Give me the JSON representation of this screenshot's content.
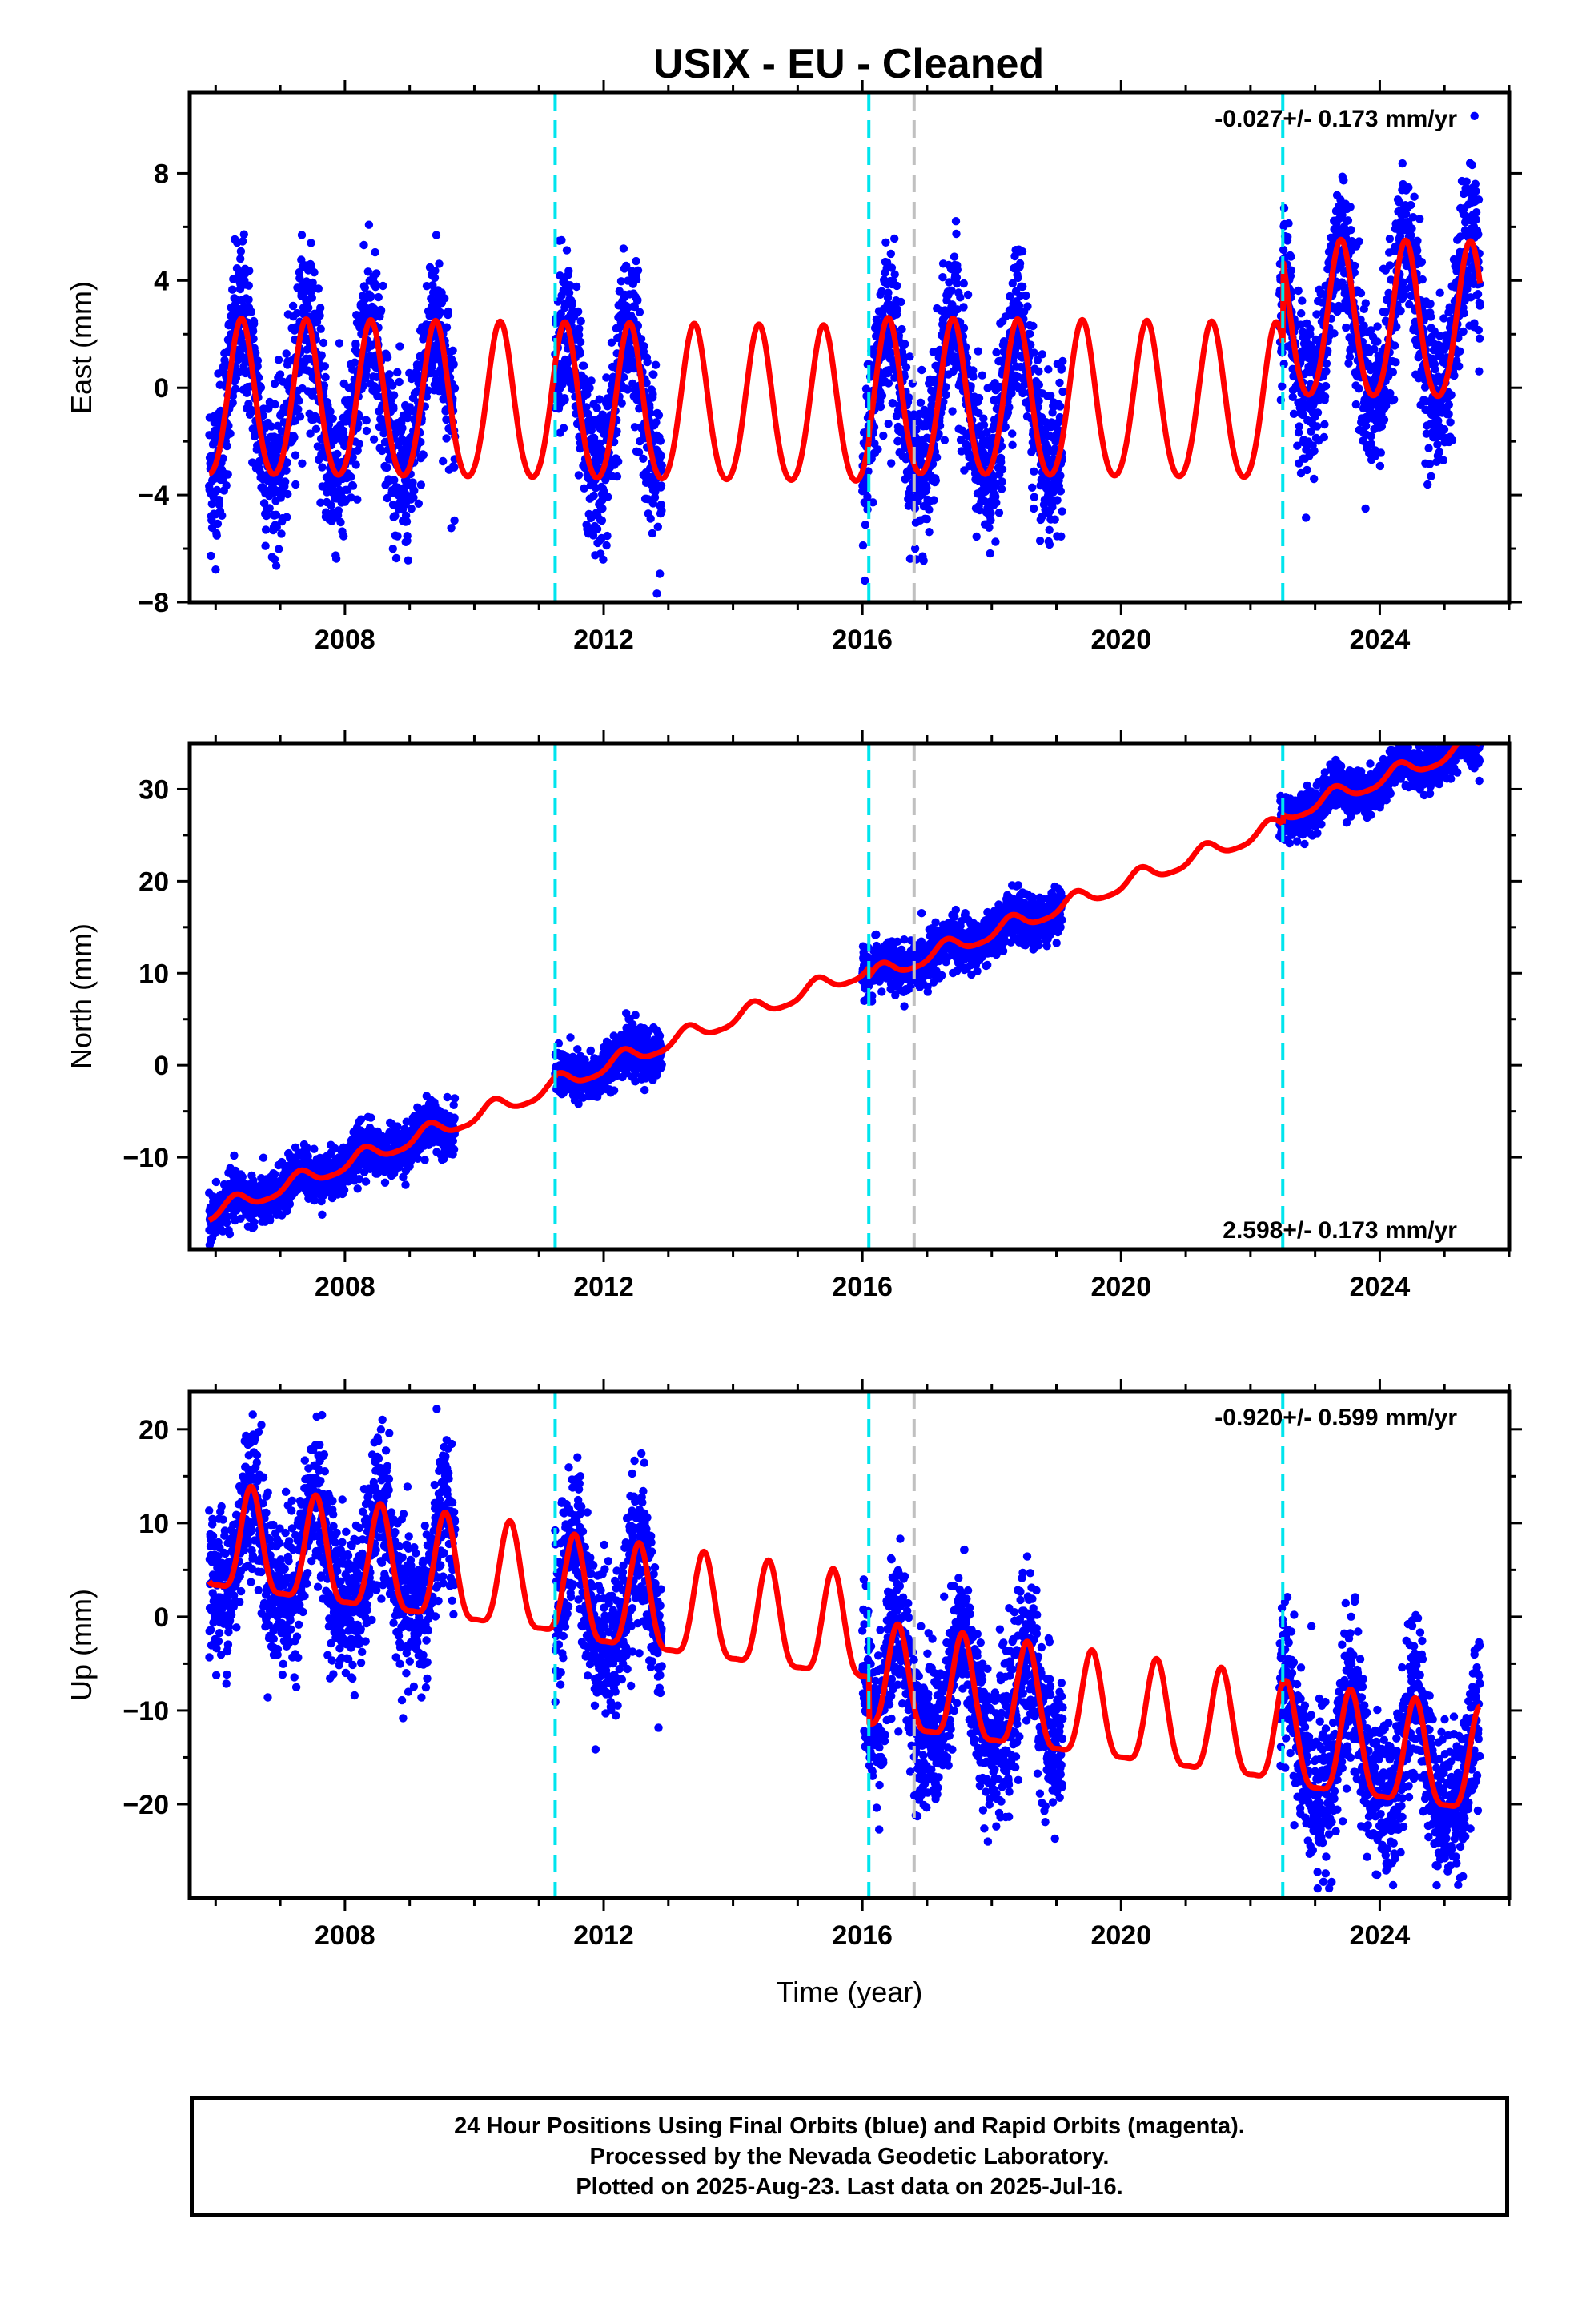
{
  "title": "USIX  - EU - Cleaned",
  "colors": {
    "data_points": "#0000ff",
    "model_curve": "#ff0000",
    "equipment_change": "#00e5ee",
    "other_event": "#c0c0c0",
    "frame": "#000000"
  },
  "footer": {
    "line1": "24 Hour Positions Using Final Orbits (blue) and Rapid Orbits (magenta).",
    "line2": "Processed by the Nevada Geodetic Laboratory.",
    "line3": "Plotted on 2025-Aug-23. Last data on 2025-Jul-16."
  },
  "chart_data": [
    {
      "type": "scatter",
      "panel": "east",
      "ylabel": "East (mm)",
      "xlabel": "",
      "xlim": [
        2005.6,
        2026.0
      ],
      "ylim": [
        -8,
        11
      ],
      "xticks": [
        2008,
        2012,
        2016,
        2020,
        2024
      ],
      "yticks": [
        -8,
        -4,
        0,
        4,
        8
      ],
      "rate_text": "-0.027+/- 0.173 mm/yr",
      "rate_position": "top-right",
      "vertical_lines": [
        {
          "x": 2011.25,
          "kind": "equipment_change"
        },
        {
          "x": 2016.1,
          "kind": "equipment_change"
        },
        {
          "x": 2016.8,
          "kind": "other_event"
        },
        {
          "x": 2022.5,
          "kind": "equipment_change"
        }
      ],
      "model": {
        "rate": -0.027,
        "annual_amplitude": 2.9,
        "semiannual_amplitude": 0.3,
        "phase_year": 2006.4,
        "segment_offsets": [
          {
            "from": 2005.9,
            "to": 2011.25,
            "offset": -0.6
          },
          {
            "from": 2011.25,
            "to": 2016.1,
            "offset": -0.6
          },
          {
            "from": 2016.1,
            "to": 2022.5,
            "offset": -0.3
          },
          {
            "from": 2022.5,
            "to": 2025.55,
            "offset": 2.8
          }
        ]
      },
      "data_spans": [
        {
          "from": 2005.9,
          "to": 2009.7,
          "scatter": 1.5
        },
        {
          "from": 2011.25,
          "to": 2012.9,
          "scatter": 1.5
        },
        {
          "from": 2016.0,
          "to": 2019.1,
          "scatter": 1.4
        },
        {
          "from": 2022.45,
          "to": 2025.55,
          "scatter": 1.4
        }
      ]
    },
    {
      "type": "scatter",
      "panel": "north",
      "ylabel": "North (mm)",
      "xlabel": "",
      "xlim": [
        2005.6,
        2026.0
      ],
      "ylim": [
        -20,
        35
      ],
      "xticks": [
        2008,
        2012,
        2016,
        2020,
        2024
      ],
      "yticks": [
        -10,
        0,
        10,
        20,
        30
      ],
      "rate_text": "2.598+/- 0.173 mm/yr",
      "rate_position": "bottom-right",
      "vertical_lines": [
        {
          "x": 2011.25,
          "kind": "equipment_change"
        },
        {
          "x": 2016.1,
          "kind": "equipment_change"
        },
        {
          "x": 2016.8,
          "kind": "other_event"
        },
        {
          "x": 2022.5,
          "kind": "equipment_change"
        }
      ],
      "model": {
        "rate": 2.598,
        "annual_amplitude": 0.9,
        "semiannual_amplitude": 0.2,
        "phase_year": 2006.3,
        "segment_offsets": [
          {
            "from": 2005.9,
            "to": 2011.25,
            "offset": -16.2
          },
          {
            "from": 2011.25,
            "to": 2016.1,
            "offset": -16.0
          },
          {
            "from": 2016.1,
            "to": 2022.5,
            "offset": -17.0
          },
          {
            "from": 2022.5,
            "to": 2025.55,
            "offset": -16.0
          }
        ]
      },
      "data_spans": [
        {
          "from": 2005.9,
          "to": 2009.7,
          "scatter": 1.3
        },
        {
          "from": 2011.25,
          "to": 2012.9,
          "scatter": 1.3
        },
        {
          "from": 2016.0,
          "to": 2019.1,
          "scatter": 1.3
        },
        {
          "from": 2022.45,
          "to": 2025.55,
          "scatter": 1.2
        }
      ]
    },
    {
      "type": "scatter",
      "panel": "up",
      "ylabel": "Up (mm)",
      "xlabel": "Time (year)",
      "xlim": [
        2005.6,
        2026.0
      ],
      "ylim": [
        -30,
        24
      ],
      "xticks": [
        2008,
        2012,
        2016,
        2020,
        2024
      ],
      "yticks": [
        -20,
        -10,
        0,
        10,
        20
      ],
      "rate_text": "-0.920+/- 0.599 mm/yr",
      "rate_position": "top-right",
      "vertical_lines": [
        {
          "x": 2011.25,
          "kind": "equipment_change"
        },
        {
          "x": 2016.1,
          "kind": "equipment_change"
        },
        {
          "x": 2016.8,
          "kind": "other_event"
        },
        {
          "x": 2022.5,
          "kind": "equipment_change"
        }
      ],
      "model": {
        "rate": -0.92,
        "annual_amplitude": 5.5,
        "semiannual_amplitude": 1.5,
        "phase_year": 2006.55,
        "segment_offsets": [
          {
            "from": 2005.9,
            "to": 2011.25,
            "offset": 7.5
          },
          {
            "from": 2011.25,
            "to": 2016.1,
            "offset": 7.0
          },
          {
            "from": 2016.1,
            "to": 2022.5,
            "offset": 2.0
          },
          {
            "from": 2022.5,
            "to": 2025.55,
            "offset": 1.5
          }
        ]
      },
      "data_spans": [
        {
          "from": 2005.9,
          "to": 2009.7,
          "scatter": 4.0
        },
        {
          "from": 2011.25,
          "to": 2012.9,
          "scatter": 4.0
        },
        {
          "from": 2016.0,
          "to": 2019.1,
          "scatter": 4.0
        },
        {
          "from": 2022.45,
          "to": 2025.55,
          "scatter": 4.0
        }
      ]
    }
  ]
}
